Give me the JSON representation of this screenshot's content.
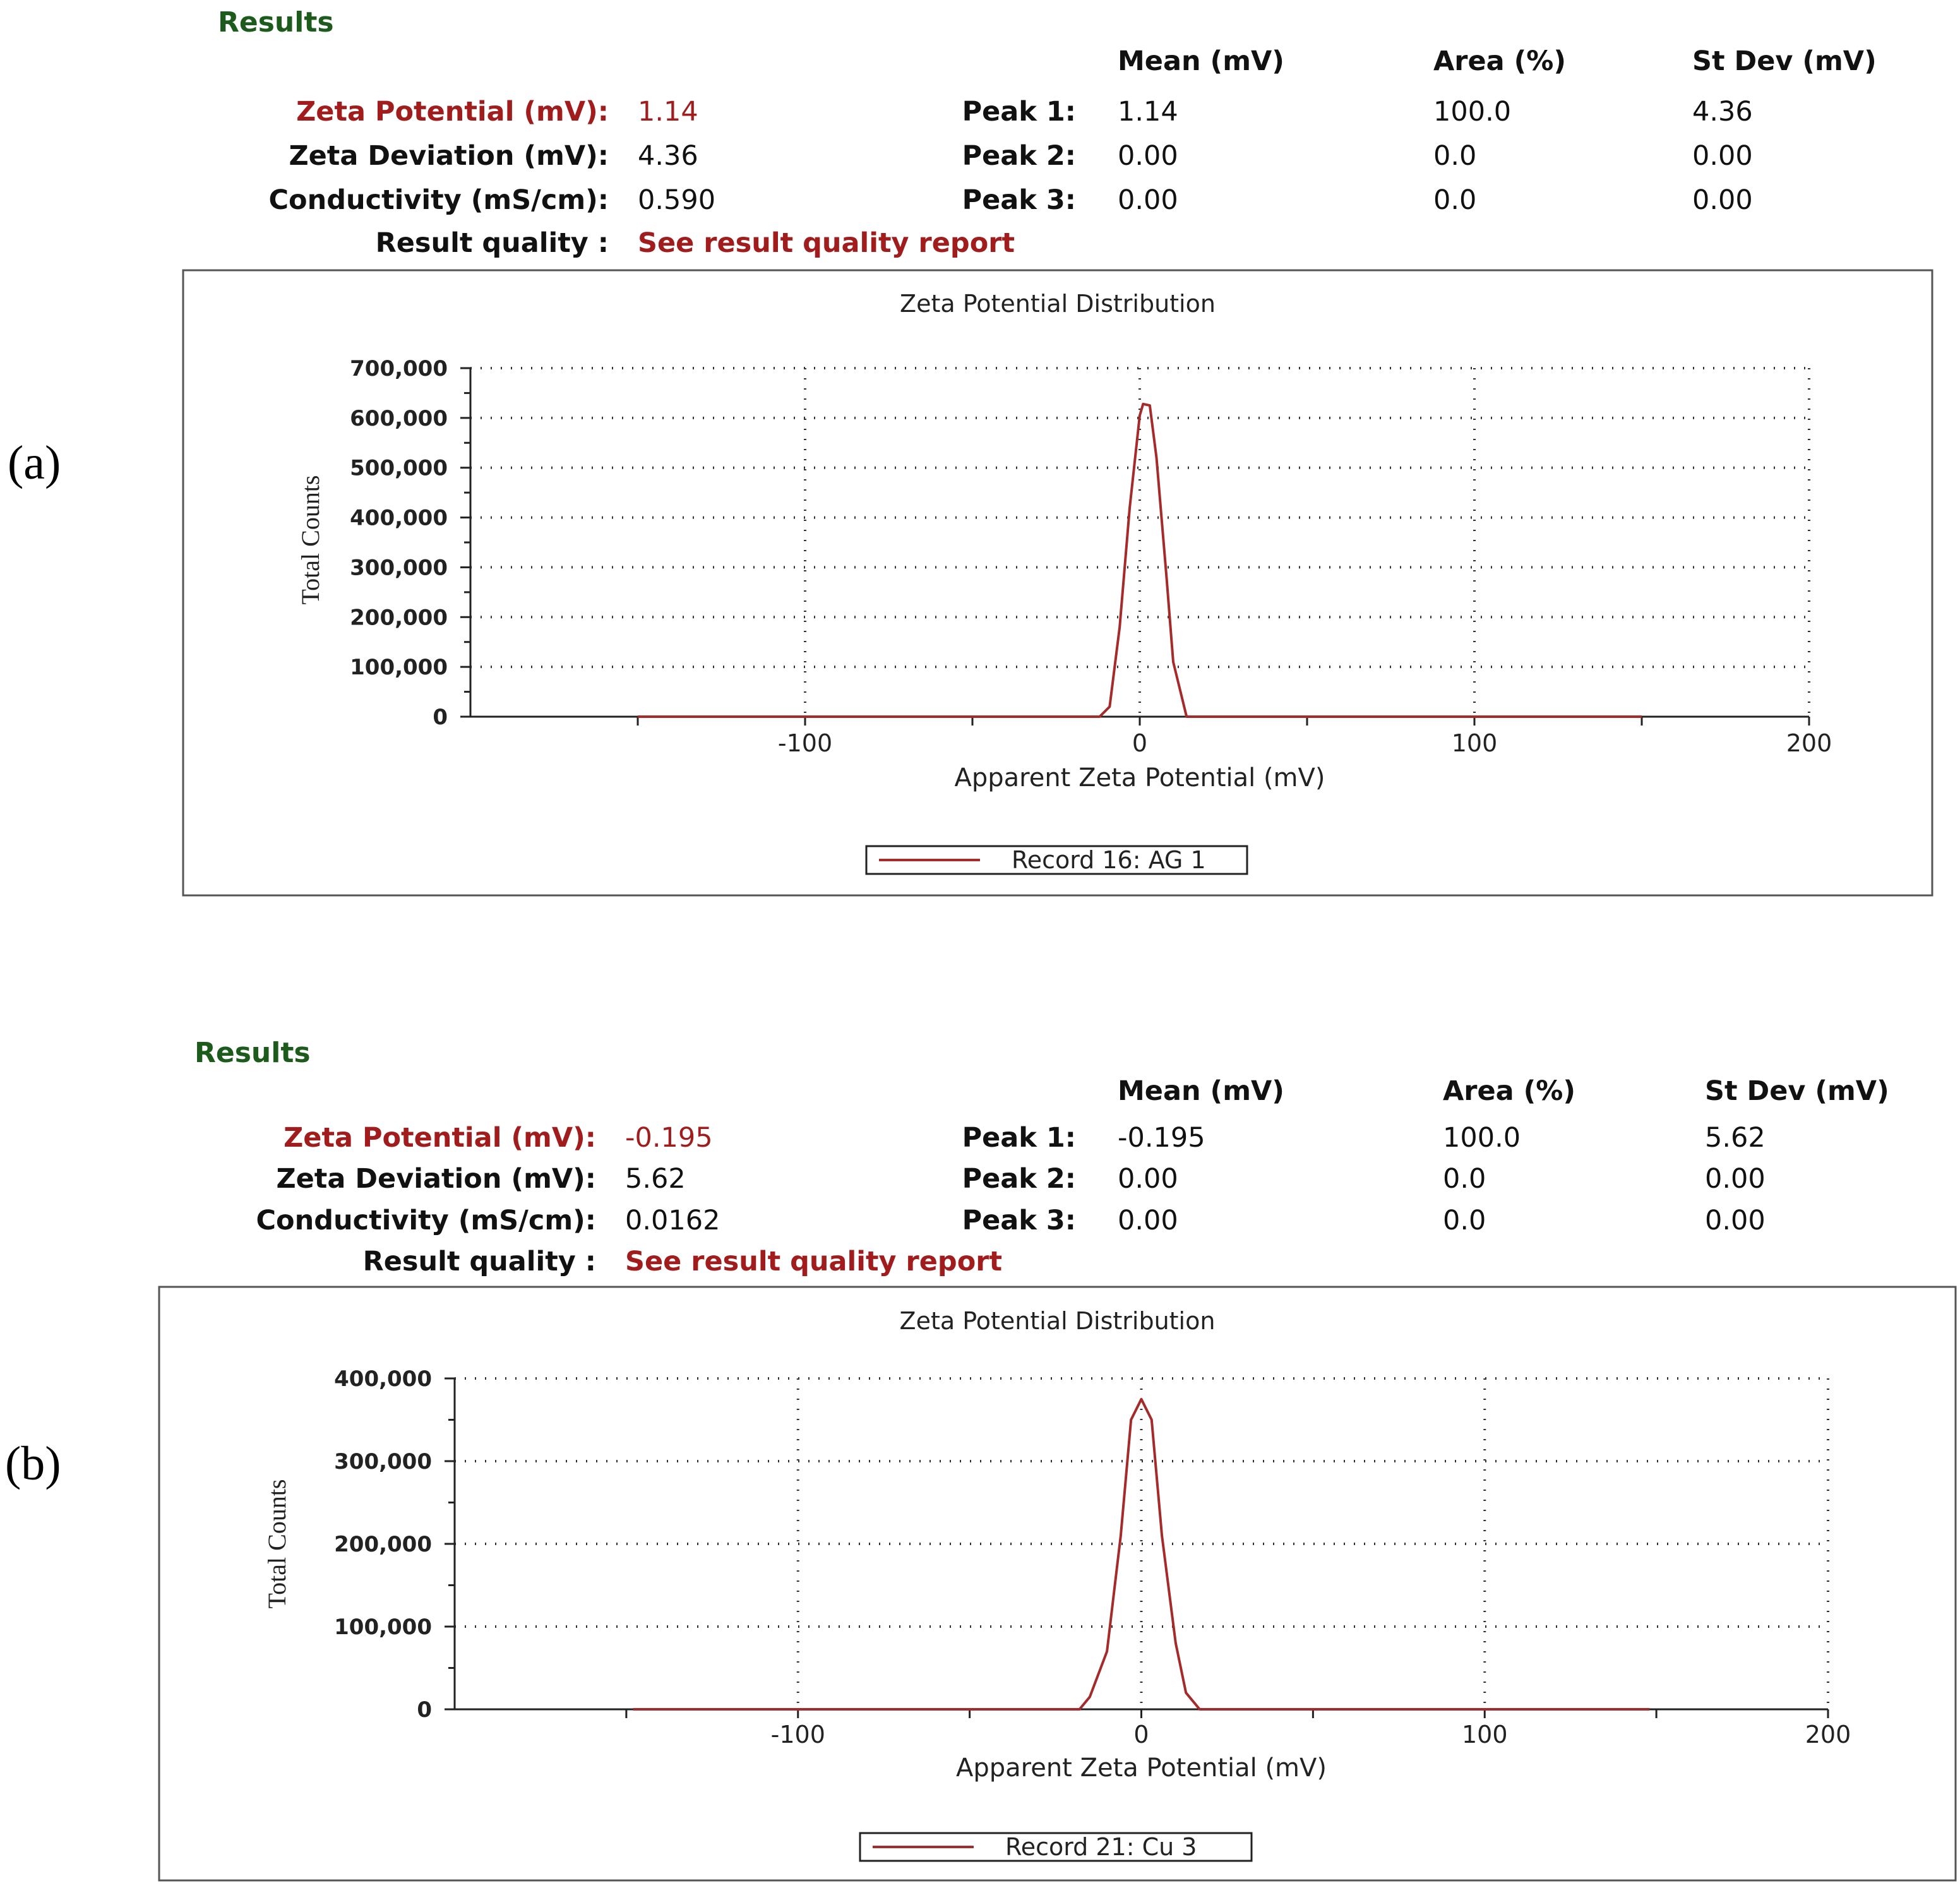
{
  "panels": [
    {
      "letter": "(a)",
      "results": {
        "title": "Results",
        "headers": [
          "Mean (mV)",
          "Area (%)",
          "St Dev (mV)"
        ],
        "zeta_potential_label": "Zeta Potential (mV):",
        "zeta_potential_value": "1.14",
        "zeta_deviation_label": "Zeta Deviation (mV):",
        "zeta_deviation_value": "4.36",
        "conductivity_label": "Conductivity (mS/cm):",
        "conductivity_value": "0.590",
        "result_quality_label": "Result quality :",
        "result_quality_value": "See result quality report",
        "peaks": [
          {
            "label": "Peak 1:",
            "mean": "1.14",
            "area": "100.0",
            "stdev": "4.36"
          },
          {
            "label": "Peak 2:",
            "mean": "0.00",
            "area": "0.0",
            "stdev": "0.00"
          },
          {
            "label": "Peak 3:",
            "mean": "0.00",
            "area": "0.0",
            "stdev": "0.00"
          }
        ]
      }
    },
    {
      "letter": "(b)",
      "results": {
        "title": "Results",
        "headers": [
          "Mean (mV)",
          "Area (%)",
          "St Dev (mV)"
        ],
        "zeta_potential_label": "Zeta Potential (mV):",
        "zeta_potential_value": "-0.195",
        "zeta_deviation_label": "Zeta Deviation (mV):",
        "zeta_deviation_value": "5.62",
        "conductivity_label": "Conductivity (mS/cm):",
        "conductivity_value": "0.0162",
        "result_quality_label": "Result quality :",
        "result_quality_value": "See result quality report",
        "peaks": [
          {
            "label": "Peak 1:",
            "mean": "-0.195",
            "area": "100.0",
            "stdev": "5.62"
          },
          {
            "label": "Peak 2:",
            "mean": "0.00",
            "area": "0.0",
            "stdev": "0.00"
          },
          {
            "label": "Peak 3:",
            "mean": "0.00",
            "area": "0.0",
            "stdev": "0.00"
          }
        ]
      }
    }
  ],
  "chart_data": [
    {
      "type": "line",
      "title": "Zeta Potential Distribution",
      "xlabel": "Apparent Zeta Potential (mV)",
      "ylabel": "Total Counts",
      "xlim": [
        -200,
        200
      ],
      "ylim": [
        0,
        700000
      ],
      "x_ticks": [
        -100,
        0,
        100,
        200
      ],
      "x_tick_labels": [
        "-100",
        "0",
        "100",
        "200"
      ],
      "y_ticks": [
        0,
        100000,
        200000,
        300000,
        400000,
        500000,
        600000,
        700000
      ],
      "y_tick_labels": [
        "0",
        "100,000",
        "200,000",
        "300,000",
        "400,000",
        "500,000",
        "600,000",
        "700,000"
      ],
      "grid": true,
      "color": "#a52a2a",
      "legend_position": "bottom-center",
      "series": [
        {
          "name": "Record 16: AG 1",
          "x": [
            -150,
            -12,
            -9,
            -6,
            -3,
            0,
            1,
            3,
            5,
            8,
            10,
            14,
            150
          ],
          "y": [
            0,
            0,
            20000,
            180000,
            420000,
            605000,
            628000,
            625000,
            520000,
            280000,
            110000,
            0,
            0
          ]
        }
      ]
    },
    {
      "type": "line",
      "title": "Zeta Potential Distribution",
      "xlabel": "Apparent Zeta Potential (mV)",
      "ylabel": "Total Counts",
      "xlim": [
        -200,
        200
      ],
      "ylim": [
        0,
        400000
      ],
      "x_ticks": [
        -100,
        0,
        100,
        200
      ],
      "x_tick_labels": [
        "-100",
        "0",
        "100",
        "200"
      ],
      "y_ticks": [
        0,
        100000,
        200000,
        300000,
        400000
      ],
      "y_tick_labels": [
        "0",
        "100,000",
        "200,000",
        "300,000",
        "400,000"
      ],
      "grid": true,
      "color": "#a52a2a",
      "legend_position": "bottom-center",
      "series": [
        {
          "name": "Record 21: Cu 3",
          "x": [
            -148,
            -18,
            -15,
            -10,
            -6,
            -3,
            0,
            3,
            6,
            10,
            13,
            17,
            148
          ],
          "y": [
            0,
            0,
            15000,
            70000,
            210000,
            350000,
            375000,
            350000,
            210000,
            80000,
            20000,
            0,
            0
          ]
        }
      ]
    }
  ]
}
